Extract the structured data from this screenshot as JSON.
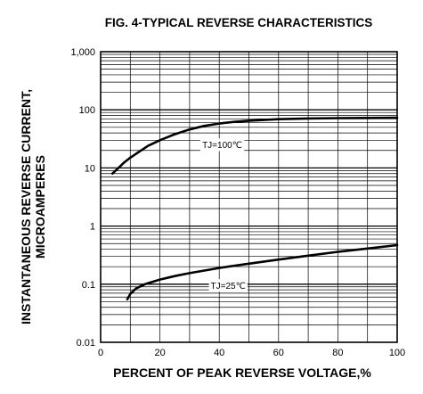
{
  "chart_data": {
    "type": "line",
    "title": "FIG. 4-TYPICAL REVERSE CHARACTERISTICS",
    "xlabel": "PERCENT OF PEAK REVERSE VOLTAGE,%",
    "ylabel": [
      "INSTANTANEOUS REVERSE CURRENT,",
      "MICROAMPERES"
    ],
    "xlim": [
      0,
      100
    ],
    "ylim": [
      0.01,
      1000
    ],
    "yscale": "log",
    "grid": true,
    "x_ticks": [
      0,
      20,
      40,
      60,
      80,
      100
    ],
    "y_ticks": [
      {
        "value": 0.01,
        "label": "0.01"
      },
      {
        "value": 0.1,
        "label": "0.1"
      },
      {
        "value": 1,
        "label": "1"
      },
      {
        "value": 10,
        "label": "10"
      },
      {
        "value": 100,
        "label": "100"
      },
      {
        "value": 1000,
        "label": "1,000"
      }
    ],
    "series": [
      {
        "name": "TJ=100℃",
        "x": [
          4,
          6,
          8,
          10,
          13,
          16,
          20,
          25,
          30,
          35,
          40,
          45,
          50,
          60,
          70,
          80,
          90,
          100
        ],
        "y": [
          8,
          10,
          12.5,
          15,
          19,
          24,
          30,
          38,
          46,
          53,
          58,
          62,
          65,
          69,
          71,
          72,
          72.5,
          73
        ]
      },
      {
        "name": "TJ=25℃",
        "x": [
          9,
          10,
          12,
          15,
          20,
          25,
          30,
          40,
          50,
          60,
          70,
          80,
          90,
          100
        ],
        "y": [
          0.055,
          0.068,
          0.085,
          0.1,
          0.12,
          0.138,
          0.155,
          0.19,
          0.225,
          0.265,
          0.31,
          0.36,
          0.41,
          0.47
        ]
      }
    ],
    "annotations": [
      {
        "text": "TJ=100℃",
        "x": 41,
        "y": 25
      },
      {
        "text": "TJ=25℃",
        "x": 43,
        "y": 0.095
      }
    ]
  }
}
